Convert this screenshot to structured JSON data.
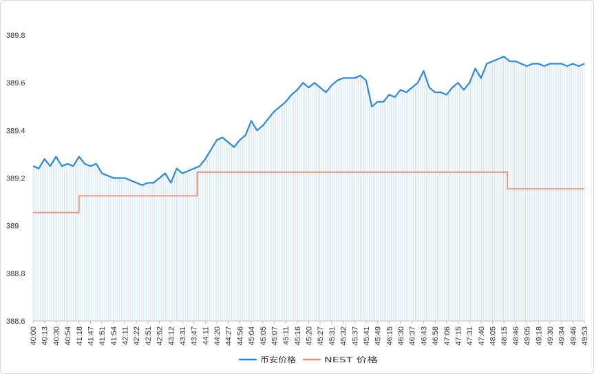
{
  "chart_data": {
    "type": "line",
    "title": "",
    "xlabel": "",
    "ylabel": "",
    "ylim": [
      388.6,
      389.8
    ],
    "ytick_values": [
      388.6,
      388.8,
      389,
      389.2,
      389.4,
      389.6,
      389.8
    ],
    "ytick_labels": [
      "388.6",
      "388.8",
      "389",
      "389.2",
      "389.4",
      "389.6",
      "389.8"
    ],
    "x_tick_labels": [
      "40:00",
      "40:13",
      "40:30",
      "40:54",
      "41:18",
      "41:47",
      "41:51",
      "41:54",
      "42:11",
      "42:22",
      "42:51",
      "42:52",
      "43:12",
      "43:31",
      "43:47",
      "44:11",
      "44:20",
      "44:27",
      "44:56",
      "45:04",
      "45:05",
      "45:07",
      "45:11",
      "45:16",
      "45:20",
      "45:27",
      "45:31",
      "45:32",
      "45:37",
      "45:41",
      "45:49",
      "46:15",
      "46:30",
      "46:37",
      "46:43",
      "46:58",
      "47:06",
      "47:15",
      "47:31",
      "47:40",
      "48:05",
      "48:15",
      "48:46",
      "49:05",
      "49:18",
      "49:30",
      "49:34",
      "49:46",
      "49:53"
    ],
    "series": [
      {
        "name": "币安价格",
        "color": "#2b88d8",
        "x": [
          0,
          0.5,
          1,
          1.5,
          2,
          2.5,
          3,
          3.5,
          4,
          4.5,
          5,
          5.5,
          6,
          6.5,
          7,
          7.5,
          8,
          8.5,
          9,
          9.5,
          10,
          10.5,
          11,
          11.5,
          12,
          12.5,
          13,
          13.5,
          14,
          14.5,
          15,
          15.5,
          16,
          16.5,
          17,
          17.5,
          18,
          18.5,
          19,
          19.5,
          20,
          20.5,
          21,
          21.5,
          22,
          22.5,
          23,
          23.5,
          24,
          24.5,
          25,
          25.5,
          26,
          26.5,
          27,
          27.5,
          28,
          28.5,
          29,
          29.5,
          30,
          30.5,
          31,
          31.5,
          32,
          32.5,
          33,
          33.5,
          34,
          34.5,
          35,
          35.5,
          36,
          36.5,
          37,
          37.5,
          38,
          38.5,
          39,
          39.5,
          40,
          40.5,
          41,
          41.5,
          42,
          42.5,
          43,
          43.5,
          44,
          44.5,
          45,
          45.5,
          46,
          46.5,
          47,
          47.5,
          48
        ],
        "values": [
          389.25,
          389.24,
          389.28,
          389.25,
          389.29,
          389.25,
          389.26,
          389.25,
          389.29,
          389.26,
          389.25,
          389.26,
          389.22,
          389.21,
          389.2,
          389.2,
          389.2,
          389.19,
          389.18,
          389.17,
          389.18,
          389.18,
          389.2,
          389.22,
          389.18,
          389.24,
          389.22,
          389.23,
          389.24,
          389.25,
          389.28,
          389.32,
          389.36,
          389.37,
          389.35,
          389.33,
          389.36,
          389.38,
          389.44,
          389.4,
          389.42,
          389.45,
          389.48,
          389.5,
          389.52,
          389.55,
          389.57,
          389.6,
          389.58,
          389.6,
          389.58,
          389.56,
          389.59,
          389.61,
          389.62,
          389.62,
          389.62,
          389.63,
          389.61,
          389.5,
          389.52,
          389.52,
          389.55,
          389.54,
          389.57,
          389.56,
          389.58,
          389.6,
          389.65,
          389.58,
          389.56,
          389.56,
          389.55,
          389.58,
          389.6,
          389.57,
          389.6,
          389.66,
          389.62,
          389.68,
          389.69,
          389.7,
          389.71,
          389.69,
          389.69,
          389.68,
          389.67,
          389.68,
          389.68,
          389.67,
          389.68,
          389.68,
          389.68,
          389.67,
          389.68,
          389.67,
          389.68
        ]
      },
      {
        "name": "NEST 价格",
        "color": "#e8917a",
        "x": [
          0,
          4,
          4,
          14.3,
          14.3,
          41.3,
          41.3,
          48
        ],
        "values": [
          389.055,
          389.055,
          389.125,
          389.125,
          389.225,
          389.225,
          389.155,
          389.155
        ]
      }
    ],
    "legend": [
      "币安价格",
      "NEST 价格"
    ],
    "legend_position": "bottom-center",
    "grid": false
  }
}
